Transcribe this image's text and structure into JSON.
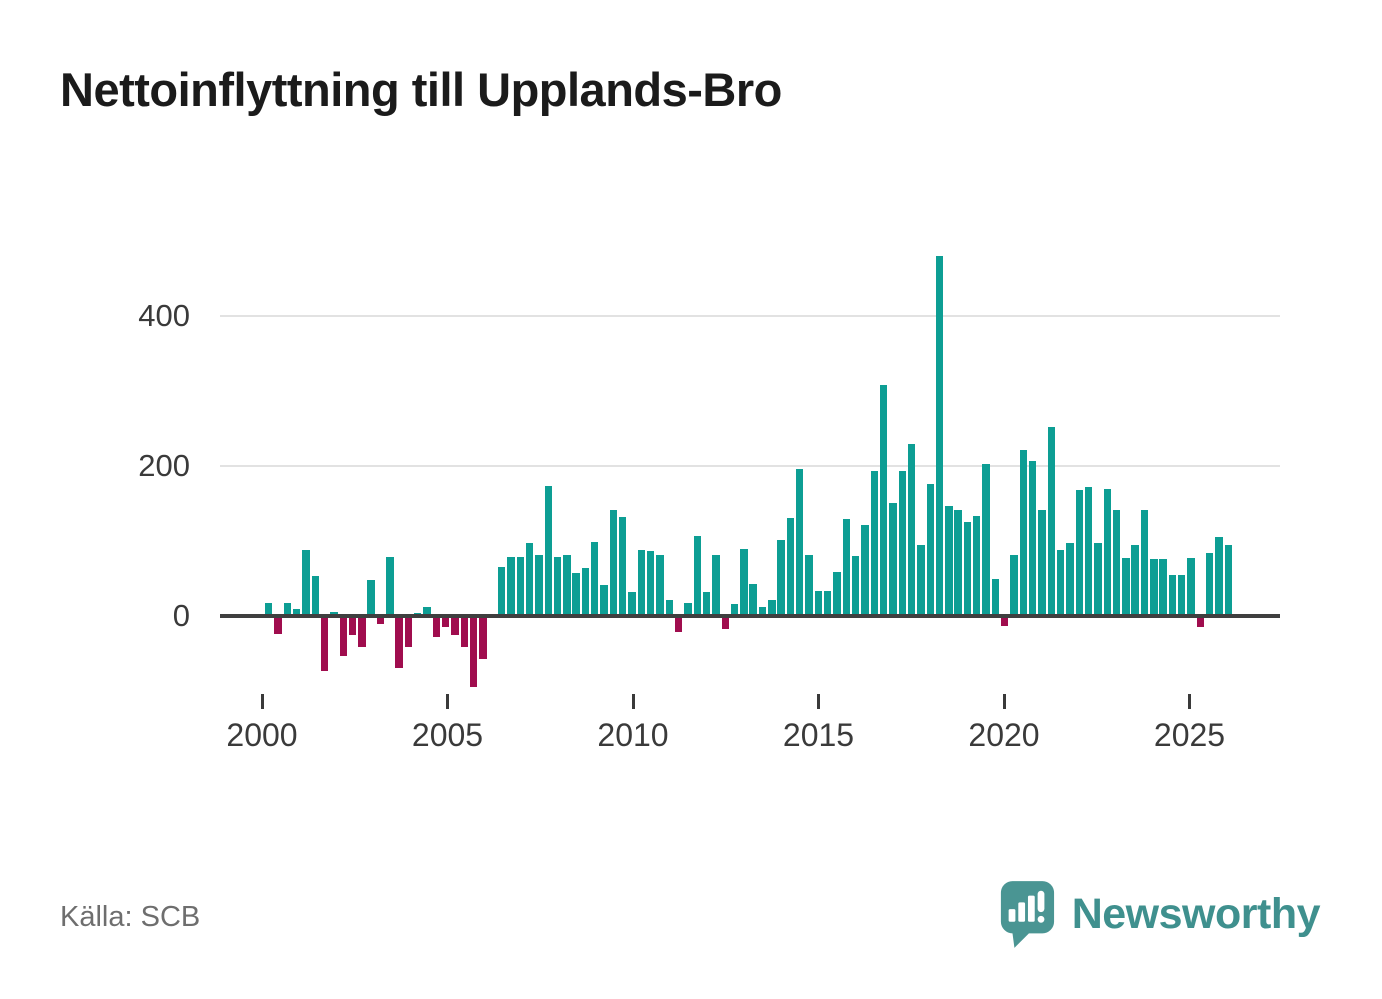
{
  "title": "Nettoinflyttning till Upplands-Bro",
  "source": "Källa: SCB",
  "brand": {
    "name": "Newsworthy"
  },
  "colors": {
    "positive_bar": "#0d9e94",
    "negative_bar": "#a00d4e",
    "gridline": "#e2e2e2",
    "zero_axis": "#3f3f3f",
    "title_text": "#1b1b1b",
    "tick_text": "#3a3a3a",
    "source_text": "#6e6e6e",
    "brand_teal": "#3f908e"
  },
  "chart_data": {
    "type": "bar",
    "title": "Nettoinflyttning till Upplands-Bro",
    "frequency": "quarterly",
    "start_year": 2000,
    "x_tick_labels": [
      "2000",
      "2005",
      "2010",
      "2015",
      "2020",
      "2025"
    ],
    "y_ticks": [
      0,
      200,
      400
    ],
    "ylim": [
      -120,
      500
    ],
    "grid": "horizontal-only",
    "legend": "none",
    "values": [
      17,
      -21,
      17,
      9,
      88,
      53,
      -70,
      6,
      -50,
      -22,
      -39,
      48,
      -8,
      79,
      -67,
      -39,
      4,
      12,
      -25,
      -12,
      -23,
      -38,
      -92,
      -54,
      0,
      66,
      79,
      79,
      97,
      82,
      174,
      79,
      81,
      57,
      64,
      99,
      41,
      142,
      132,
      32,
      88,
      87,
      81,
      21,
      -19,
      18,
      107,
      32,
      81,
      -14,
      16,
      90,
      43,
      12,
      21,
      102,
      131,
      196,
      82,
      33,
      33,
      59,
      130,
      80,
      122,
      193,
      308,
      151,
      193,
      230,
      95,
      176,
      480,
      147,
      142,
      126,
      133,
      203,
      50,
      -10,
      82,
      221,
      207,
      141,
      252,
      88,
      98,
      168,
      172,
      98,
      169,
      142,
      78,
      95,
      142,
      76,
      76,
      55,
      55,
      77,
      -12,
      84,
      106,
      95
    ]
  }
}
